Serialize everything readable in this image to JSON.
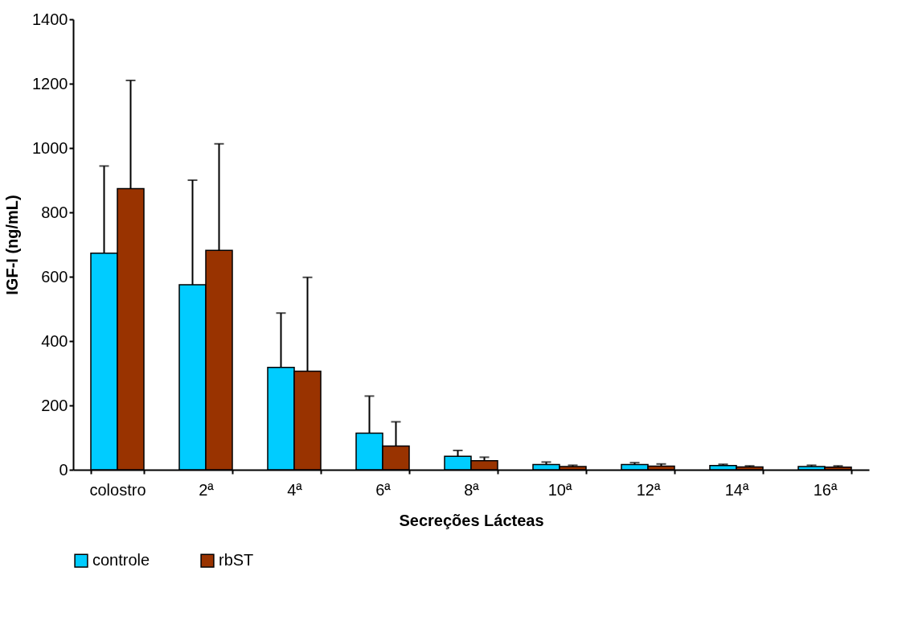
{
  "chart_data": {
    "type": "bar",
    "xlabel": "Secreções Lácteas",
    "ylabel": "IGF-I (ng/mL)",
    "categories": [
      "colostro",
      "2ª",
      "4ª",
      "6ª",
      "8ª",
      "10ª",
      "12ª",
      "14ª",
      "16ª"
    ],
    "series": [
      {
        "name": "controle",
        "color": "#00ccff",
        "values": [
          673,
          575,
          318,
          114,
          42,
          16,
          16,
          13,
          10
        ],
        "errors": [
          [
            673,
            944
          ],
          [
            575,
            900
          ],
          [
            318,
            487
          ],
          [
            114,
            229
          ],
          [
            42,
            60
          ],
          [
            16,
            24
          ],
          [
            16,
            22
          ],
          [
            13,
            17
          ],
          [
            10,
            14
          ]
        ]
      },
      {
        "name": "rbST",
        "color": "#993300",
        "values": [
          874,
          682,
          306,
          74,
          28,
          10,
          11,
          9,
          8
        ],
        "errors": [
          [
            874,
            1210
          ],
          [
            682,
            1013
          ],
          [
            306,
            598
          ],
          [
            74,
            149
          ],
          [
            28,
            39
          ],
          [
            10,
            14
          ],
          [
            11,
            18
          ],
          [
            9,
            12
          ],
          [
            8,
            12
          ]
        ]
      }
    ],
    "ylim": [
      0,
      1400
    ],
    "yticks": [
      0,
      200,
      400,
      600,
      800,
      1000,
      1200,
      1400
    ],
    "grid": false,
    "legend": "bottom"
  }
}
